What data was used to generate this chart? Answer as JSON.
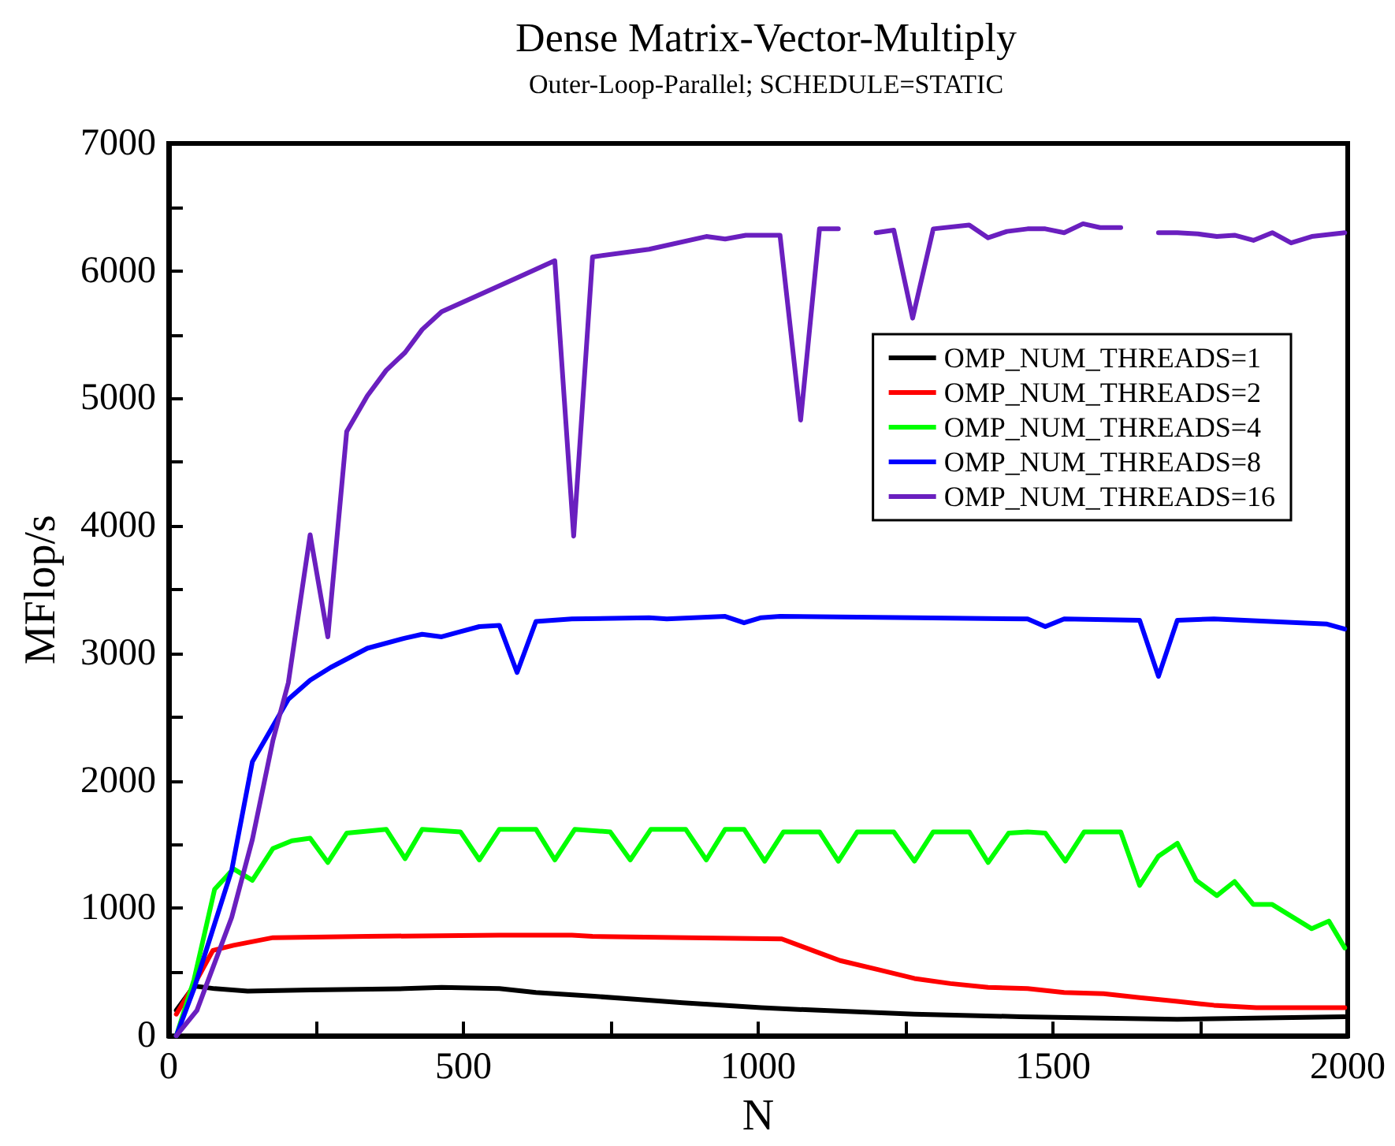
{
  "chart_data": {
    "type": "line",
    "title": "Dense Matrix-Vector-Multiply",
    "subtitle": "Outer-Loop-Parallel; SCHEDULE=STATIC",
    "xlabel": "N",
    "ylabel": "MFlop/s",
    "xlim": [
      0,
      2000
    ],
    "xticks": [
      0,
      {
        "value": 250,
        "label": null
      },
      500,
      {
        "value": 750,
        "label": null
      },
      1000,
      {
        "value": 1250,
        "label": null
      },
      1500,
      {
        "value": 1750,
        "label": null
      },
      2000
    ],
    "ylim": [
      0,
      7000
    ],
    "yticks": [
      0,
      {
        "value": 500,
        "label": null
      },
      1000,
      {
        "value": 1500,
        "label": null
      },
      2000,
      {
        "value": 2500,
        "label": null
      },
      3000,
      {
        "value": 3500,
        "label": null
      },
      4000,
      {
        "value": 4500,
        "label": null
      },
      5000,
      {
        "value": 5500,
        "label": null
      },
      6000,
      {
        "value": 6500,
        "label": null
      },
      7000
    ],
    "grid": false,
    "legend": "top right",
    "marker": "none",
    "line_style": "solid",
    "series": [
      {
        "name": "OMP_NUM_THREADS=1",
        "color": "#000000",
        "x": [
          13,
          43,
          78,
          134,
          240,
          401,
          463,
          561,
          623,
          722,
          872,
          1005,
          1104,
          1265,
          1444,
          1711,
          1995
        ],
        "values": [
          200,
          390,
          370,
          350,
          360,
          370,
          380,
          370,
          340,
          310,
          260,
          220,
          200,
          170,
          150,
          130,
          150
        ]
      },
      {
        "name": "OMP_NUM_THREADS=2",
        "color": "#ff0000",
        "x": [
          13,
          43,
          75,
          110,
          177,
          337,
          561,
          684,
          719,
          882,
          1040,
          1104,
          1139,
          1203,
          1265,
          1326,
          1390,
          1457,
          1519,
          1586,
          1647,
          1711,
          1773,
          1845,
          1995
        ],
        "values": [
          170,
          400,
          670,
          710,
          770,
          780,
          790,
          790,
          780,
          770,
          760,
          650,
          590,
          520,
          450,
          410,
          380,
          370,
          340,
          330,
          300,
          270,
          240,
          220,
          220
        ]
      },
      {
        "name": "OMP_NUM_THREADS=4",
        "color": "#00ff00",
        "x": [
          13,
          43,
          78,
          110,
          142,
          177,
          209,
          240,
          270,
          302,
          369,
          401,
          430,
          495,
          527,
          561,
          623,
          655,
          689,
          749,
          783,
          818,
          877,
          912,
          944,
          976,
          1011,
          1043,
          1104,
          1136,
          1168,
          1230,
          1265,
          1297,
          1358,
          1390,
          1425,
          1457,
          1487,
          1521,
          1553,
          1615,
          1647,
          1679,
          1711,
          1743,
          1778,
          1808,
          1840,
          1872,
          1939,
          1968,
          1995
        ],
        "values": [
          0,
          440,
          1150,
          1310,
          1220,
          1470,
          1530,
          1550,
          1360,
          1590,
          1620,
          1390,
          1620,
          1600,
          1380,
          1620,
          1620,
          1380,
          1620,
          1600,
          1380,
          1620,
          1620,
          1380,
          1620,
          1620,
          1370,
          1600,
          1600,
          1370,
          1600,
          1600,
          1370,
          1600,
          1600,
          1360,
          1590,
          1600,
          1590,
          1370,
          1600,
          1600,
          1180,
          1410,
          1510,
          1220,
          1100,
          1210,
          1030,
          1030,
          840,
          900,
          690
        ]
      },
      {
        "name": "OMP_NUM_THREADS=8",
        "color": "#0000ff",
        "x": [
          13,
          43,
          107,
          142,
          203,
          240,
          275,
          337,
          401,
          430,
          463,
          495,
          527,
          561,
          591,
          623,
          684,
          815,
          845,
          944,
          976,
          1005,
          1037,
          1265,
          1457,
          1487,
          1519,
          1647,
          1679,
          1711,
          1773,
          1965,
          1995
        ],
        "values": [
          0,
          370,
          1300,
          2150,
          2640,
          2790,
          2890,
          3040,
          3120,
          3150,
          3130,
          3170,
          3210,
          3220,
          2850,
          3250,
          3270,
          3280,
          3270,
          3290,
          3240,
          3280,
          3290,
          3280,
          3270,
          3210,
          3270,
          3260,
          2820,
          3260,
          3270,
          3230,
          3190
        ]
      },
      {
        "name": "OMP_NUM_THREADS=16",
        "color": "#6a1fbf",
        "x": [
          13,
          48,
          107,
          142,
          177,
          203,
          240,
          270,
          302,
          337,
          369,
          401,
          430,
          463,
          588,
          655,
          687,
          719,
          815,
          912,
          944,
          979,
          1005,
          1037,
          1072,
          1104,
          1136,
          1168,
          1200,
          1230,
          1262,
          1297,
          1358,
          1390,
          1422,
          1457,
          1487,
          1519,
          1551,
          1580,
          1615,
          1648,
          1679,
          1711,
          1746,
          1778,
          1808,
          1840,
          1872,
          1904,
          1939,
          1995
        ],
        "values": [
          0,
          200,
          930,
          1540,
          2320,
          2770,
          3930,
          3130,
          4740,
          5020,
          5220,
          5360,
          5540,
          5680,
          5940,
          6080,
          3920,
          6110,
          6170,
          6270,
          6250,
          6280,
          6280,
          6280,
          4830,
          6330,
          6330,
          null,
          6300,
          6320,
          5630,
          6330,
          6360,
          6260,
          6310,
          6330,
          6330,
          6300,
          6370,
          6340,
          6340,
          null,
          6300,
          6300,
          6290,
          6270,
          6280,
          6240,
          6300,
          6220,
          6270,
          6300
        ]
      }
    ]
  }
}
